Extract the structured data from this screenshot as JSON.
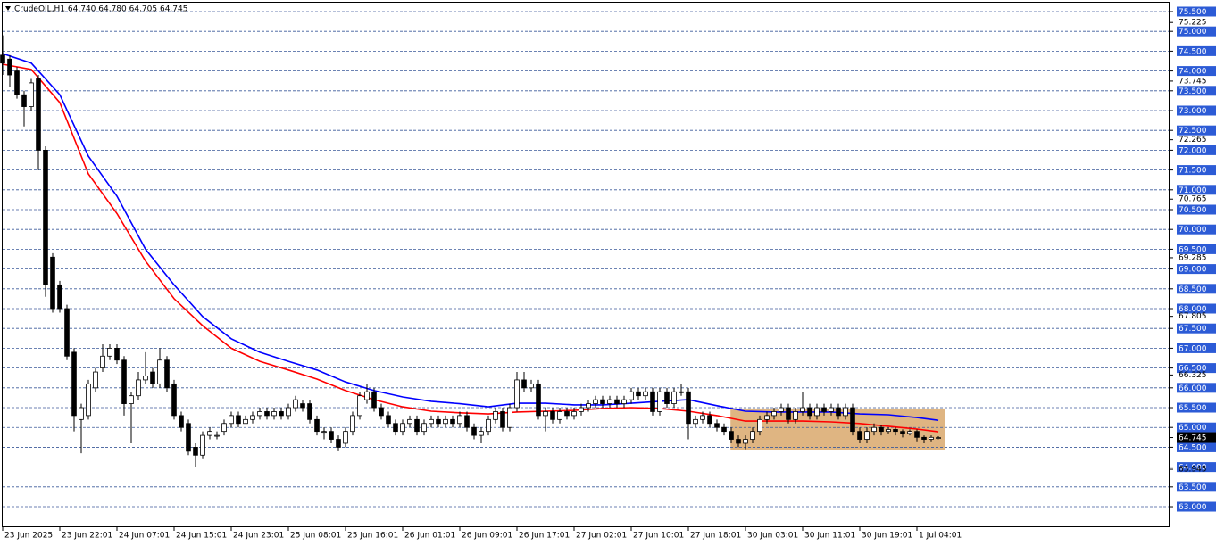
{
  "chart_data": {
    "type": "candlestick",
    "title": "CrudeOIL,H1  64.740 64.780 64.705 64.745",
    "xlim": [
      0,
      163.375
    ],
    "ylim": [
      62.505,
      75.725
    ],
    "xticks": [
      {
        "value": 0,
        "label": "23 Jun 2025"
      },
      {
        "value": 8,
        "label": "23 Jun 22:01"
      },
      {
        "value": 16,
        "label": "24 Jun 07:01"
      },
      {
        "value": 24,
        "label": "24 Jun 15:01"
      },
      {
        "value": 32,
        "label": "24 Jun 23:01"
      },
      {
        "value": 40,
        "label": "25 Jun 08:01"
      },
      {
        "value": 48,
        "label": "25 Jun 16:01"
      },
      {
        "value": 56,
        "label": "26 Jun 01:01"
      },
      {
        "value": 64,
        "label": "26 Jun 09:01"
      },
      {
        "value": 72,
        "label": "26 Jun 17:01"
      },
      {
        "value": 80,
        "label": "27 Jun 02:01"
      },
      {
        "value": 88,
        "label": "27 Jun 10:01"
      },
      {
        "value": 96,
        "label": "27 Jun 18:01"
      },
      {
        "value": 104,
        "label": "30 Jun 03:01"
      },
      {
        "value": 112,
        "label": "30 Jun 11:01"
      },
      {
        "value": 120,
        "label": "30 Jun 19:01"
      },
      {
        "value": 128,
        "label": "1 Jul 04:01"
      }
    ],
    "yticks": [
      {
        "value": 63,
        "label": "63.000"
      },
      {
        "value": 63.5,
        "label": "63.500"
      },
      {
        "value": 64,
        "label": "64.000"
      },
      {
        "value": 64.5,
        "label": "64.500"
      },
      {
        "value": 65,
        "label": "65.000"
      },
      {
        "value": 65.5,
        "label": "65.500"
      },
      {
        "value": 66,
        "label": "66.000"
      },
      {
        "value": 66.5,
        "label": "66.500"
      },
      {
        "value": 67,
        "label": "67.000"
      },
      {
        "value": 67.5,
        "label": "67.500"
      },
      {
        "value": 68,
        "label": "68.000"
      },
      {
        "value": 68.5,
        "label": "68.500"
      },
      {
        "value": 69,
        "label": "69.000"
      },
      {
        "value": 69.5,
        "label": "69.500"
      },
      {
        "value": 70,
        "label": "70.000"
      },
      {
        "value": 70.5,
        "label": "70.500"
      },
      {
        "value": 71,
        "label": "71.000"
      },
      {
        "value": 71.5,
        "label": "71.500"
      },
      {
        "value": 72,
        "label": "72.000"
      },
      {
        "value": 72.5,
        "label": "72.500"
      },
      {
        "value": 73,
        "label": "73.000"
      },
      {
        "value": 73.5,
        "label": "73.500"
      },
      {
        "value": 74,
        "label": "74.000"
      },
      {
        "value": 74.5,
        "label": "74.500"
      },
      {
        "value": 75,
        "label": "75.000"
      },
      {
        "value": 75.5,
        "label": "75.500"
      }
    ],
    "ylabels": [
      {
        "value": 75.225,
        "label": "75.225"
      },
      {
        "value": 73.745,
        "label": "73.745"
      },
      {
        "value": 72.265,
        "label": "72.265"
      },
      {
        "value": 70.765,
        "label": "70.765"
      },
      {
        "value": 69.285,
        "label": "69.285"
      },
      {
        "value": 67.805,
        "label": "67.805"
      },
      {
        "value": 66.325,
        "label": "66.325"
      },
      {
        "value": 63.945,
        "label": "63.945"
      }
    ],
    "last_price": {
      "value": 64.745,
      "label": "64.745"
    },
    "grid": true,
    "up_color": "#ffffff",
    "down_color": "#000000",
    "open": [
      74.4,
      74.3,
      74.0,
      73.4,
      73.1,
      73.8,
      72.0,
      69.3,
      68.6,
      68.0,
      66.9,
      65.2,
      65.3,
      66.0,
      66.5,
      66.8,
      67.0,
      66.7,
      65.6,
      65.8,
      66.2,
      66.4,
      66.1,
      66.7,
      66.1,
      65.3,
      65.1,
      64.5,
      64.3,
      64.8,
      64.8,
      64.9,
      65.1,
      65.3,
      65.1,
      65.2,
      65.3,
      65.4,
      65.3,
      65.4,
      65.3,
      65.5,
      65.6,
      65.6,
      65.2,
      64.9,
      64.9,
      64.7,
      64.6,
      64.9,
      65.3,
      65.7,
      65.9,
      65.5,
      65.3,
      65.1,
      64.9,
      65.1,
      65.2,
      64.9,
      65.1,
      65.2,
      65.1,
      65.2,
      65.1,
      65.3,
      65.0,
      64.8,
      64.9,
      65.2,
      65.4,
      65.0,
      65.5,
      66.2,
      66.0,
      66.1,
      65.3,
      65.4,
      65.2,
      65.4,
      65.3,
      65.4,
      65.5,
      65.6,
      65.7,
      65.6,
      65.7,
      65.6,
      65.7,
      65.9,
      65.8,
      65.9,
      65.4,
      65.9,
      65.6,
      65.9,
      65.9,
      65.1,
      65.2,
      65.3,
      65.1,
      65.0,
      64.9,
      64.7,
      64.6,
      64.7,
      64.9,
      65.2,
      65.3,
      65.4,
      65.5,
      65.2,
      65.4,
      65.5,
      65.3,
      65.5,
      65.4,
      65.5,
      65.3,
      65.5,
      64.9,
      64.7,
      64.9,
      65.0,
      64.9,
      64.95,
      64.9,
      64.85,
      64.9,
      64.75,
      64.7,
      64.74
    ],
    "high": [
      74.9,
      74.4,
      74.1,
      73.5,
      73.8,
      73.9,
      72.1,
      69.4,
      68.7,
      68.1,
      67.0,
      65.6,
      66.2,
      66.5,
      67.1,
      67.1,
      67.1,
      66.8,
      65.9,
      66.4,
      66.9,
      66.5,
      67.0,
      66.8,
      66.2,
      65.4,
      65.2,
      64.6,
      64.9,
      65.0,
      64.9,
      65.2,
      65.4,
      65.4,
      65.3,
      65.4,
      65.5,
      65.5,
      65.5,
      65.5,
      65.6,
      65.8,
      65.7,
      65.7,
      65.3,
      65.0,
      65.0,
      64.8,
      65.0,
      65.4,
      65.9,
      66.1,
      66.0,
      65.6,
      65.4,
      65.2,
      65.2,
      65.3,
      65.3,
      65.2,
      65.3,
      65.3,
      65.3,
      65.3,
      65.4,
      65.4,
      65.1,
      65.0,
      65.3,
      65.5,
      65.5,
      65.6,
      66.4,
      66.4,
      66.2,
      66.2,
      65.5,
      65.5,
      65.5,
      65.5,
      65.5,
      65.6,
      65.7,
      65.8,
      65.8,
      65.8,
      65.8,
      65.8,
      66.0,
      66.0,
      66.0,
      66.0,
      66.0,
      66.0,
      66.0,
      66.1,
      66.0,
      65.3,
      65.4,
      65.4,
      65.2,
      65.1,
      65.0,
      64.8,
      64.8,
      65.0,
      65.3,
      65.4,
      65.5,
      65.6,
      65.6,
      65.5,
      65.9,
      65.6,
      65.6,
      65.6,
      65.6,
      65.6,
      65.6,
      65.6,
      65.0,
      65.0,
      65.1,
      65.05,
      65.0,
      65.0,
      64.95,
      64.95,
      64.95,
      64.8,
      64.8,
      64.78
    ],
    "low": [
      73.9,
      73.6,
      73.3,
      72.6,
      73.0,
      71.5,
      68.3,
      67.9,
      67.9,
      66.7,
      64.9,
      64.35,
      65.2,
      65.9,
      66.4,
      66.7,
      66.6,
      65.3,
      64.6,
      65.7,
      66.1,
      66.0,
      66.0,
      65.9,
      65.2,
      64.9,
      64.3,
      64.0,
      64.2,
      64.7,
      64.7,
      64.8,
      65.0,
      65.0,
      65.1,
      65.1,
      65.2,
      65.2,
      65.2,
      65.2,
      65.2,
      65.4,
      65.4,
      65.1,
      64.8,
      64.7,
      64.6,
      64.4,
      64.5,
      64.8,
      65.2,
      65.6,
      65.4,
      65.2,
      65.0,
      64.8,
      64.8,
      65.0,
      64.8,
      64.8,
      65.0,
      65.0,
      65.0,
      65.0,
      65.0,
      64.9,
      64.7,
      64.6,
      64.8,
      65.1,
      64.9,
      64.9,
      65.4,
      65.9,
      65.9,
      65.2,
      64.9,
      65.1,
      65.1,
      65.2,
      65.2,
      65.3,
      65.4,
      65.5,
      65.5,
      65.5,
      65.5,
      65.5,
      65.6,
      65.7,
      65.7,
      65.3,
      65.3,
      65.5,
      65.5,
      65.8,
      64.7,
      65.0,
      65.1,
      65.0,
      64.9,
      64.8,
      64.6,
      64.5,
      64.45,
      64.6,
      64.8,
      65.1,
      65.2,
      65.3,
      65.1,
      65.1,
      65.3,
      65.2,
      65.2,
      65.3,
      65.3,
      65.2,
      65.2,
      64.8,
      64.6,
      64.6,
      64.8,
      64.8,
      64.85,
      64.8,
      64.75,
      64.8,
      64.65,
      64.6,
      64.65,
      64.705
    ],
    "close": [
      74.2,
      73.9,
      73.4,
      73.1,
      73.7,
      72.0,
      68.6,
      68.0,
      68.0,
      66.8,
      65.3,
      65.5,
      66.1,
      66.4,
      66.8,
      67.0,
      66.7,
      65.6,
      65.8,
      66.2,
      66.3,
      66.1,
      66.7,
      66.0,
      65.3,
      65.0,
      64.4,
      64.3,
      64.8,
      64.9,
      64.8,
      65.1,
      65.3,
      65.1,
      65.2,
      65.3,
      65.4,
      65.3,
      65.4,
      65.3,
      65.5,
      65.7,
      65.5,
      65.2,
      64.9,
      64.9,
      64.7,
      64.5,
      64.9,
      65.3,
      65.8,
      65.9,
      65.5,
      65.3,
      65.1,
      64.9,
      65.1,
      65.2,
      64.9,
      65.1,
      65.2,
      65.1,
      65.2,
      65.1,
      65.3,
      65.0,
      64.8,
      64.9,
      65.2,
      65.4,
      65.0,
      65.5,
      66.2,
      66.0,
      66.1,
      65.3,
      65.4,
      65.2,
      65.4,
      65.3,
      65.4,
      65.5,
      65.6,
      65.7,
      65.6,
      65.7,
      65.6,
      65.7,
      65.9,
      65.8,
      65.9,
      65.4,
      65.9,
      65.6,
      65.9,
      65.9,
      65.1,
      65.2,
      65.3,
      65.1,
      65.0,
      64.9,
      64.7,
      64.6,
      64.7,
      64.9,
      65.2,
      65.3,
      65.4,
      65.5,
      65.2,
      65.4,
      65.5,
      65.3,
      65.5,
      65.4,
      65.5,
      65.3,
      65.5,
      64.9,
      64.7,
      64.9,
      65.0,
      64.9,
      64.95,
      64.9,
      64.85,
      64.9,
      64.75,
      64.7,
      64.75,
      64.745
    ],
    "lines": [
      {
        "color": "#0000ff",
        "x": [
          0,
          4,
          8,
          12,
          16,
          20,
          24,
          28,
          32,
          36,
          40,
          44,
          48,
          52,
          56,
          60,
          64,
          68,
          72,
          76,
          80,
          84,
          88,
          92,
          96,
          100,
          104,
          108,
          112,
          116,
          120,
          124,
          128,
          131
        ],
        "values": [
          74.44,
          74.2,
          73.4,
          71.85,
          70.84,
          69.5,
          68.6,
          67.8,
          67.24,
          66.9,
          66.67,
          66.45,
          66.15,
          65.93,
          65.77,
          65.66,
          65.6,
          65.52,
          65.61,
          65.61,
          65.57,
          65.57,
          65.61,
          65.66,
          65.7,
          65.55,
          65.41,
          65.39,
          65.39,
          65.39,
          65.34,
          65.32,
          65.25,
          65.18
        ]
      },
      {
        "color": "#ff0000",
        "x": [
          0,
          4,
          8,
          12,
          16,
          20,
          24,
          28,
          32,
          36,
          40,
          44,
          48,
          52,
          56,
          60,
          64,
          68,
          72,
          76,
          80,
          84,
          88,
          92,
          96,
          100,
          104,
          108,
          112,
          116,
          120,
          124,
          128,
          131
        ],
        "values": [
          74.17,
          74.04,
          73.2,
          71.4,
          70.4,
          69.2,
          68.25,
          67.57,
          67.0,
          66.67,
          66.45,
          66.22,
          65.93,
          65.7,
          65.52,
          65.41,
          65.37,
          65.34,
          65.39,
          65.41,
          65.43,
          65.48,
          65.5,
          65.48,
          65.41,
          65.3,
          65.16,
          65.16,
          65.16,
          65.14,
          65.1,
          65.03,
          64.96,
          64.89
        ]
      }
    ],
    "highlight": {
      "x": [
        101.9,
        131.9
      ],
      "y": [
        64.42,
        65.48
      ],
      "color": "#d9a86c"
    }
  }
}
